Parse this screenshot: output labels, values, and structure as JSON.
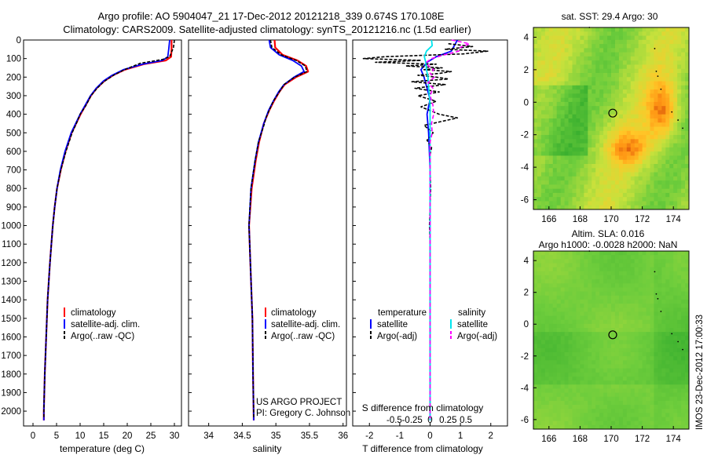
{
  "header": {
    "title_line1": "Argo profile: AO 5904047_21 17-Dec-2012 20121218_339 0.674S 170.108E",
    "title_line2": "Climatology: CARS2009. Satellite-adjusted climatology: synTS_20121216.nc (1.5d earlier)"
  },
  "colors": {
    "climatology": "#ff0000",
    "satellite": "#0000ff",
    "argo": "#000000",
    "salinity_satellite": "#00e5ee",
    "salinity_argo": "#ff00ff"
  },
  "depth_axis": {
    "ylim": [
      0,
      2080
    ],
    "ticks": [
      "0",
      "100",
      "200",
      "300",
      "400",
      "500",
      "600",
      "700",
      "800",
      "900",
      "1000",
      "1100",
      "1200",
      "1300",
      "1400",
      "1500",
      "1600",
      "1700",
      "1800",
      "1900",
      "2000"
    ]
  },
  "chart_data": [
    {
      "id": "temperature",
      "type": "line",
      "xlabel": "temperature (deg C)",
      "xlim": [
        -2,
        31.5
      ],
      "xticks": [
        "0",
        "5",
        "10",
        "15",
        "20",
        "25",
        "30"
      ],
      "legend": [
        "climatology",
        "satellite-adj. clim.",
        "Argo(..raw -QC)"
      ],
      "series": [
        {
          "name": "climatology",
          "depth": [
            0,
            50,
            90,
            110,
            130,
            160,
            190,
            220,
            260,
            300,
            350,
            400,
            500,
            600,
            700,
            800,
            900,
            1000,
            1200,
            1400,
            1600,
            1800,
            2000,
            2050
          ],
          "values": [
            29.4,
            29.4,
            29.3,
            28.2,
            23.5,
            19.5,
            17.0,
            15.2,
            13.5,
            12.3,
            11.2,
            10.1,
            8.2,
            6.9,
            5.9,
            5.1,
            4.6,
            4.2,
            3.6,
            3.1,
            2.8,
            2.5,
            2.3,
            2.3
          ]
        },
        {
          "name": "satellite",
          "depth": [
            0,
            50,
            90,
            110,
            130,
            160,
            190,
            220,
            260,
            300,
            350,
            400,
            500,
            600,
            700,
            800,
            900,
            1000,
            1200,
            1400,
            1600,
            1800,
            2000,
            2050
          ],
          "values": [
            29.0,
            28.8,
            28.6,
            27.5,
            23.3,
            19.2,
            16.8,
            15.0,
            13.4,
            12.2,
            11.1,
            10.0,
            8.1,
            6.8,
            5.8,
            5.1,
            4.6,
            4.2,
            3.6,
            3.1,
            2.8,
            2.5,
            2.3,
            2.3
          ]
        },
        {
          "name": "argo",
          "depth": [
            0,
            40,
            90,
            105,
            125,
            160,
            190,
            225,
            260,
            300,
            350,
            400,
            450,
            500,
            600,
            700,
            800,
            900,
            1000,
            1200,
            1400,
            1600,
            1800,
            2000,
            2040
          ],
          "values": [
            30.0,
            29.8,
            29.0,
            27.5,
            22.8,
            19.4,
            17.1,
            15.0,
            13.6,
            12.3,
            11.3,
            10.0,
            9.2,
            8.3,
            7.0,
            5.9,
            5.1,
            4.6,
            4.2,
            3.6,
            3.1,
            2.8,
            2.5,
            2.3,
            2.3
          ]
        }
      ]
    },
    {
      "id": "salinity",
      "type": "line",
      "xlabel": "salinity",
      "xlim": [
        33.7,
        36.05
      ],
      "xticks": [
        "34",
        "34.5",
        "35",
        "35.5",
        "36"
      ],
      "legend": [
        "climatology",
        "satellite-adj. clim.",
        "Argo(..raw -QC)"
      ],
      "annotation": [
        "US ARGO PROJECT",
        "PI: Gregory C. Johnson"
      ],
      "series": [
        {
          "name": "climatology",
          "depth": [
            0,
            40,
            80,
            110,
            140,
            170,
            200,
            240,
            280,
            330,
            380,
            450,
            550,
            650,
            800,
            1000,
            1200,
            1500,
            1800,
            2050
          ],
          "values": [
            34.98,
            34.99,
            35.1,
            35.32,
            35.45,
            35.48,
            35.3,
            35.13,
            35.05,
            34.97,
            34.9,
            34.82,
            34.75,
            34.7,
            34.64,
            34.6,
            34.62,
            34.65,
            34.66,
            34.67
          ]
        },
        {
          "name": "satellite",
          "depth": [
            0,
            40,
            80,
            110,
            140,
            170,
            200,
            240,
            280,
            330,
            380,
            450,
            550,
            650,
            800,
            1000,
            1200,
            1500,
            1800,
            2050
          ],
          "values": [
            34.9,
            34.92,
            35.05,
            35.25,
            35.38,
            35.42,
            35.27,
            35.12,
            35.04,
            34.96,
            34.89,
            34.82,
            34.74,
            34.69,
            34.63,
            34.6,
            34.62,
            34.65,
            34.66,
            34.67
          ]
        },
        {
          "name": "argo",
          "depth": [
            0,
            40,
            80,
            110,
            140,
            170,
            200,
            240,
            280,
            330,
            380,
            420,
            450,
            550,
            650,
            800,
            1000,
            1200,
            1500,
            1800,
            2040
          ],
          "values": [
            34.92,
            34.94,
            35.08,
            35.3,
            35.44,
            35.46,
            35.28,
            35.12,
            35.05,
            34.96,
            34.9,
            34.85,
            34.83,
            34.74,
            34.69,
            34.63,
            34.6,
            34.62,
            34.65,
            34.66,
            34.67
          ]
        }
      ]
    },
    {
      "id": "difference",
      "type": "line",
      "xlabel": "T difference from climatology",
      "xlabel_top": "S difference from climatology",
      "xlim": [
        -2.55,
        2.55
      ],
      "xticks": [
        "-2",
        "-1",
        "0",
        "1",
        "2"
      ],
      "xticks_top": [
        "-0.5",
        "-0.25",
        "0",
        "0.25",
        "0.5"
      ],
      "legend_temperature": [
        "temperature",
        "satellite",
        "Argo(-adj)"
      ],
      "legend_salinity": [
        "salinity",
        "satellite",
        "Argo(-adj)"
      ],
      "series": [
        {
          "name": "T satellite",
          "depth": [
            0,
            30,
            60,
            90,
            120,
            160,
            200,
            260,
            320,
            400,
            500,
            700,
            1000,
            1500,
            2050
          ],
          "values": [
            0.9,
            0.8,
            0.7,
            0.2,
            -0.1,
            -0.3,
            -0.2,
            -0.1,
            0.0,
            -0.1,
            -0.05,
            0.0,
            0.0,
            0.0,
            0.0
          ]
        },
        {
          "name": "T argo",
          "depth": [
            20,
            35,
            50,
            60,
            75,
            90,
            100,
            110,
            120,
            130,
            140,
            150,
            160,
            170,
            180,
            190,
            200,
            210,
            225,
            240,
            260,
            280,
            300,
            330,
            360,
            400,
            420,
            460,
            500,
            540,
            580,
            620,
            700,
            800,
            900,
            1000,
            1100,
            1200,
            1400,
            1600,
            1800,
            2000
          ],
          "values": [
            0.6,
            1.4,
            0.5,
            1.9,
            1.1,
            -1.5,
            -2.2,
            -0.3,
            -1.8,
            0.2,
            -0.8,
            0.4,
            -0.2,
            0.7,
            0.3,
            -0.4,
            0.2,
            0.6,
            -0.6,
            0.5,
            -0.5,
            0.3,
            -0.4,
            0.2,
            -0.3,
            0.3,
            0.9,
            -0.2,
            0.1,
            -0.1,
            0.05,
            0.0,
            0.0,
            0.02,
            0.0,
            -0.02,
            0.0,
            0.0,
            0.0,
            0.0,
            0.0,
            0.0
          ]
        },
        {
          "name": "S satellite",
          "depth": [
            0,
            30,
            60,
            90,
            120,
            160,
            200,
            260,
            350,
            450,
            600,
            800,
            1000,
            1500,
            2050
          ],
          "values": [
            0.02,
            0.03,
            -0.05,
            -0.08,
            -0.06,
            -0.05,
            -0.03,
            -0.02,
            0.0,
            0.0,
            0.0,
            0.0,
            0.0,
            0.0,
            0.0
          ]
        },
        {
          "name": "S argo",
          "depth": [
            0,
            20,
            40,
            60,
            80,
            100,
            120,
            140,
            160,
            180,
            200,
            230,
            260,
            300,
            350,
            400,
            450,
            500,
            550,
            600,
            700,
            800,
            1000,
            1500,
            2040
          ],
          "values": [
            0.3,
            0.55,
            0.42,
            0.4,
            0.2,
            0.02,
            -0.05,
            -0.02,
            0.05,
            0.0,
            0.06,
            -0.03,
            0.04,
            0.0,
            0.04,
            0.05,
            0.02,
            0.03,
            0.0,
            0.0,
            0.0,
            0.0,
            0.0,
            0.0,
            0.0
          ]
        }
      ]
    }
  ],
  "maps": [
    {
      "id": "sst-map",
      "title": "sat. SST: 29.4 Argo: 30",
      "xticks": [
        "166",
        "168",
        "170",
        "172",
        "174"
      ],
      "yticks": [
        "4",
        "2",
        "0",
        "-2",
        "-4",
        "-6"
      ],
      "xlim": [
        165,
        175
      ],
      "ylim": [
        -6.6,
        4.6
      ],
      "marker": {
        "lon": 170.1,
        "lat": -0.67
      }
    },
    {
      "id": "sla-map",
      "title_line1": "Altim. SLA: 0.016",
      "title_line2": "Argo h1000: -0.0028 h2000: NaN",
      "xticks": [
        "166",
        "168",
        "170",
        "172",
        "174"
      ],
      "yticks": [
        "4",
        "2",
        "0",
        "-2",
        "-4",
        "-6"
      ],
      "xlim": [
        165,
        175
      ],
      "ylim": [
        -6.6,
        4.6
      ],
      "marker": {
        "lon": 170.1,
        "lat": -0.67
      }
    }
  ],
  "footer": {
    "side_stamp": "IMOS 23-Dec-2012 17:00:33"
  }
}
